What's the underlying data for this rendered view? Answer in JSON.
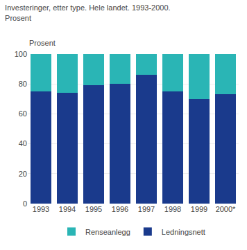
{
  "chart_data": {
    "type": "bar",
    "title": "Investeringer, etter type. Hele landet. 1993-2000.",
    "subtitle": "Prosent",
    "ylabel": "Prosent",
    "categories": [
      "1993",
      "1994",
      "1995",
      "1996",
      "1997",
      "1998",
      "1999",
      "2000*"
    ],
    "series": [
      {
        "name": "Ledningsnett",
        "color": "#1a3a8c",
        "values": [
          75,
          74,
          79,
          80,
          86,
          75,
          70,
          73
        ]
      },
      {
        "name": "Renseanlegg",
        "color": "#2ab5b5",
        "values": [
          25,
          26,
          21,
          20,
          14,
          25,
          30,
          27
        ]
      }
    ],
    "stacked": true,
    "ylim": [
      0,
      100
    ],
    "yticks": [
      0,
      20,
      40,
      60,
      80,
      100
    ],
    "grid": true,
    "legend": "bottom"
  }
}
